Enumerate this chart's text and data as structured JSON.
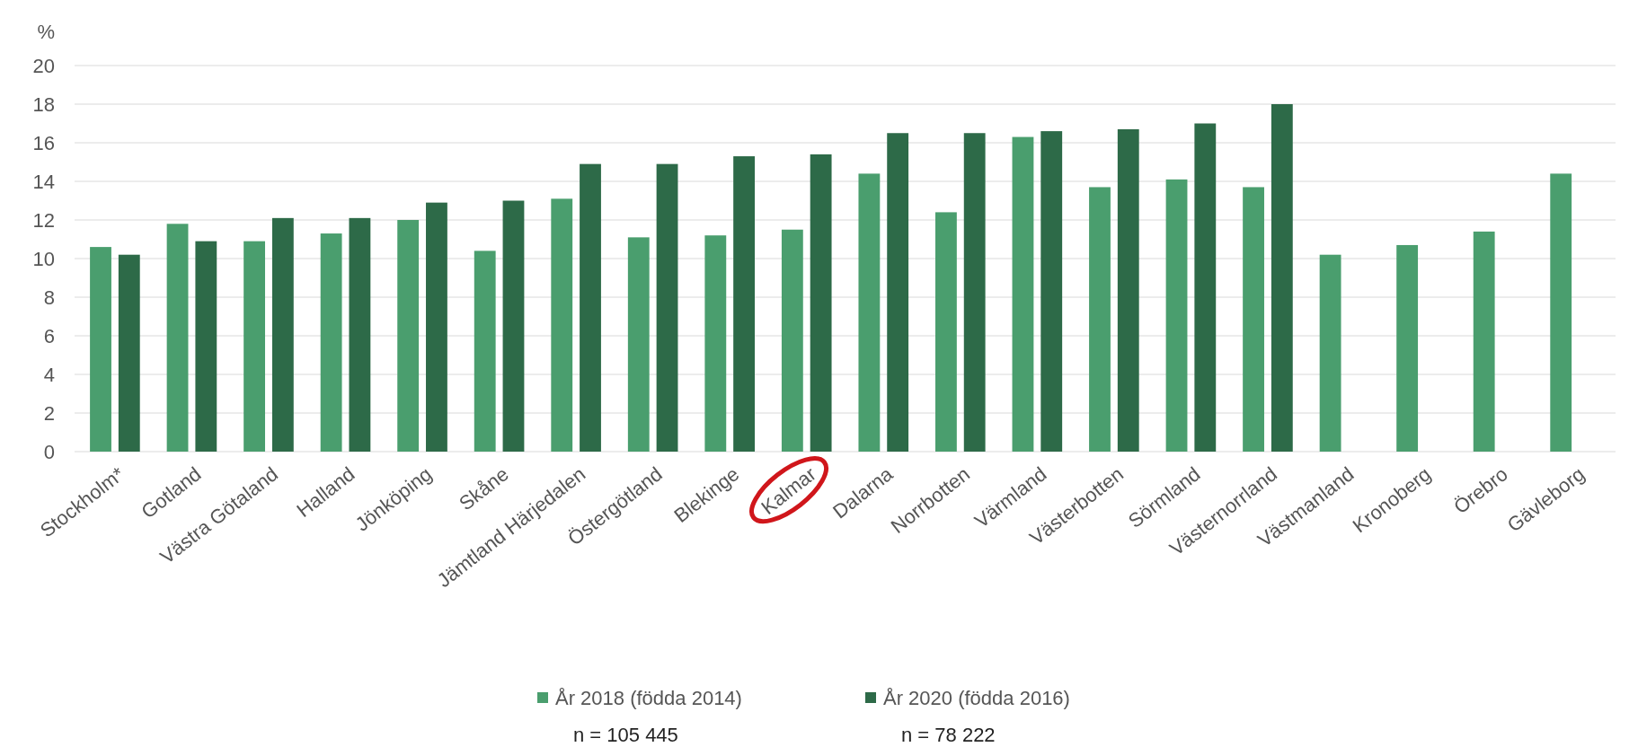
{
  "chart_data": {
    "type": "bar",
    "ylabel": "%",
    "categories": [
      "Stockholm*",
      "Gotland",
      "Västra Götaland",
      "Halland",
      "Jönköping",
      "Skåne",
      "Jämtland Härjedalen",
      "Östergötland",
      "Blekinge",
      "Kalmar",
      "Dalarna",
      "Norrbotten",
      "Värmland",
      "Västerbotten",
      "Sörmland",
      "Västernorrland",
      "Västmanland",
      "Kronoberg",
      "Örebro",
      "Gävleborg"
    ],
    "series": [
      {
        "name": "År 2018 (födda 2014)",
        "color": "#4a9e6e",
        "values": [
          10.6,
          11.8,
          10.9,
          11.3,
          12.0,
          10.4,
          13.1,
          11.1,
          11.2,
          11.5,
          14.4,
          12.4,
          16.3,
          13.7,
          14.1,
          13.7,
          10.2,
          10.7,
          11.4,
          14.4
        ]
      },
      {
        "name": "År 2020 (födda 2016)",
        "color": "#2d6a48",
        "values": [
          10.2,
          10.9,
          12.1,
          12.1,
          12.9,
          13.0,
          14.9,
          14.9,
          15.3,
          15.4,
          16.5,
          16.5,
          16.6,
          16.7,
          17.0,
          18.0,
          null,
          null,
          null,
          null
        ]
      }
    ],
    "ylim": [
      0,
      20
    ],
    "yticks": [
      0,
      2,
      4,
      6,
      8,
      10,
      12,
      14,
      16,
      18,
      20
    ],
    "grid": "y",
    "legend": "bottom",
    "annotations": [
      "n = 105 445",
      "n = 78 222"
    ]
  }
}
